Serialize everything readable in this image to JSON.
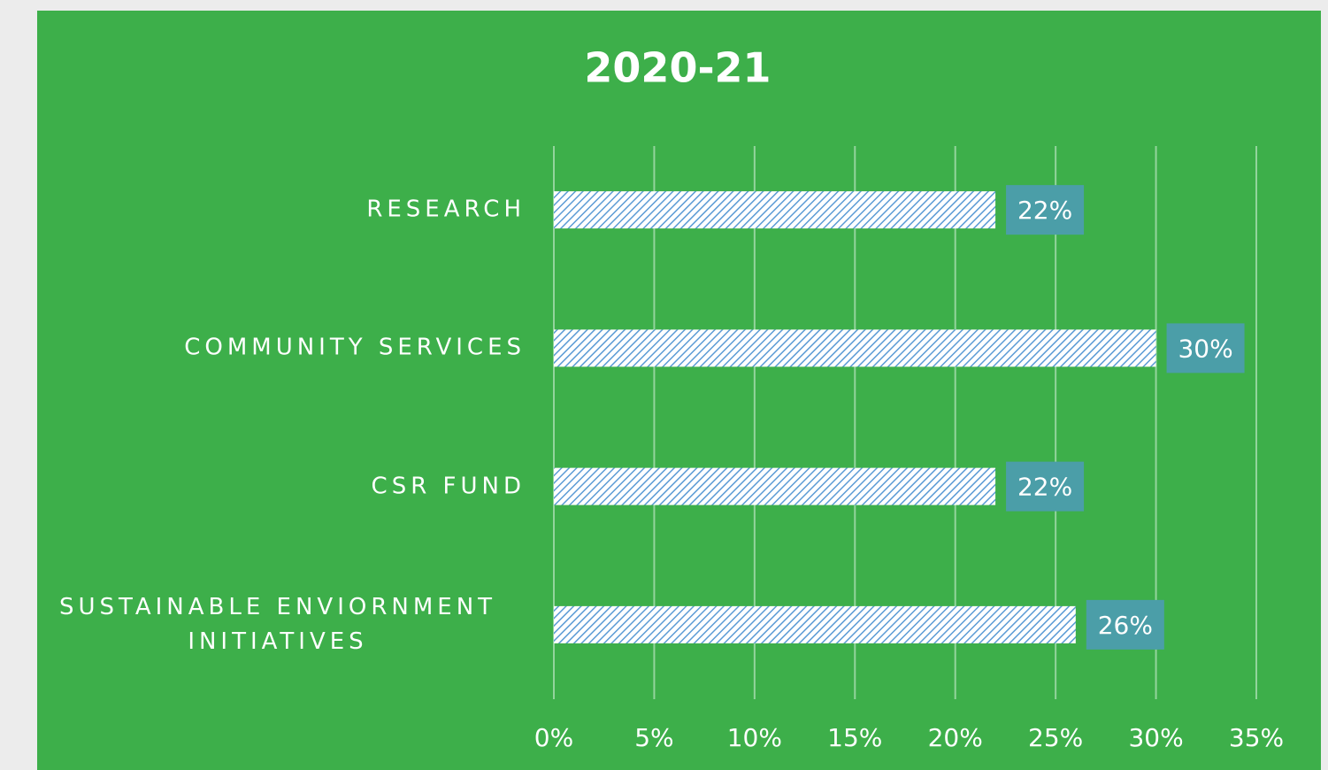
{
  "chart_data": {
    "type": "bar",
    "orientation": "horizontal",
    "title": "2020-21",
    "categories": [
      "RESEARCH",
      "COMMUNITY SERVICES",
      "CSR FUND",
      "SUSTAINABLE ENVIORNMENT INITIATIVES"
    ],
    "values": [
      22,
      30,
      22,
      26
    ],
    "value_labels": [
      "22%",
      "30%",
      "22%",
      "26%"
    ],
    "color": "#5b9bd5",
    "xlim": [
      0,
      35
    ],
    "xticks": [
      {
        "value": 0,
        "label": "0%"
      },
      {
        "value": 5,
        "label": "5%"
      },
      {
        "value": 10,
        "label": "10%"
      },
      {
        "value": 15,
        "label": "15%"
      },
      {
        "value": 20,
        "label": "20%"
      },
      {
        "value": 25,
        "label": "25%"
      },
      {
        "value": 30,
        "label": "30%"
      },
      {
        "value": 35,
        "label": "35%"
      }
    ],
    "grid": true
  }
}
